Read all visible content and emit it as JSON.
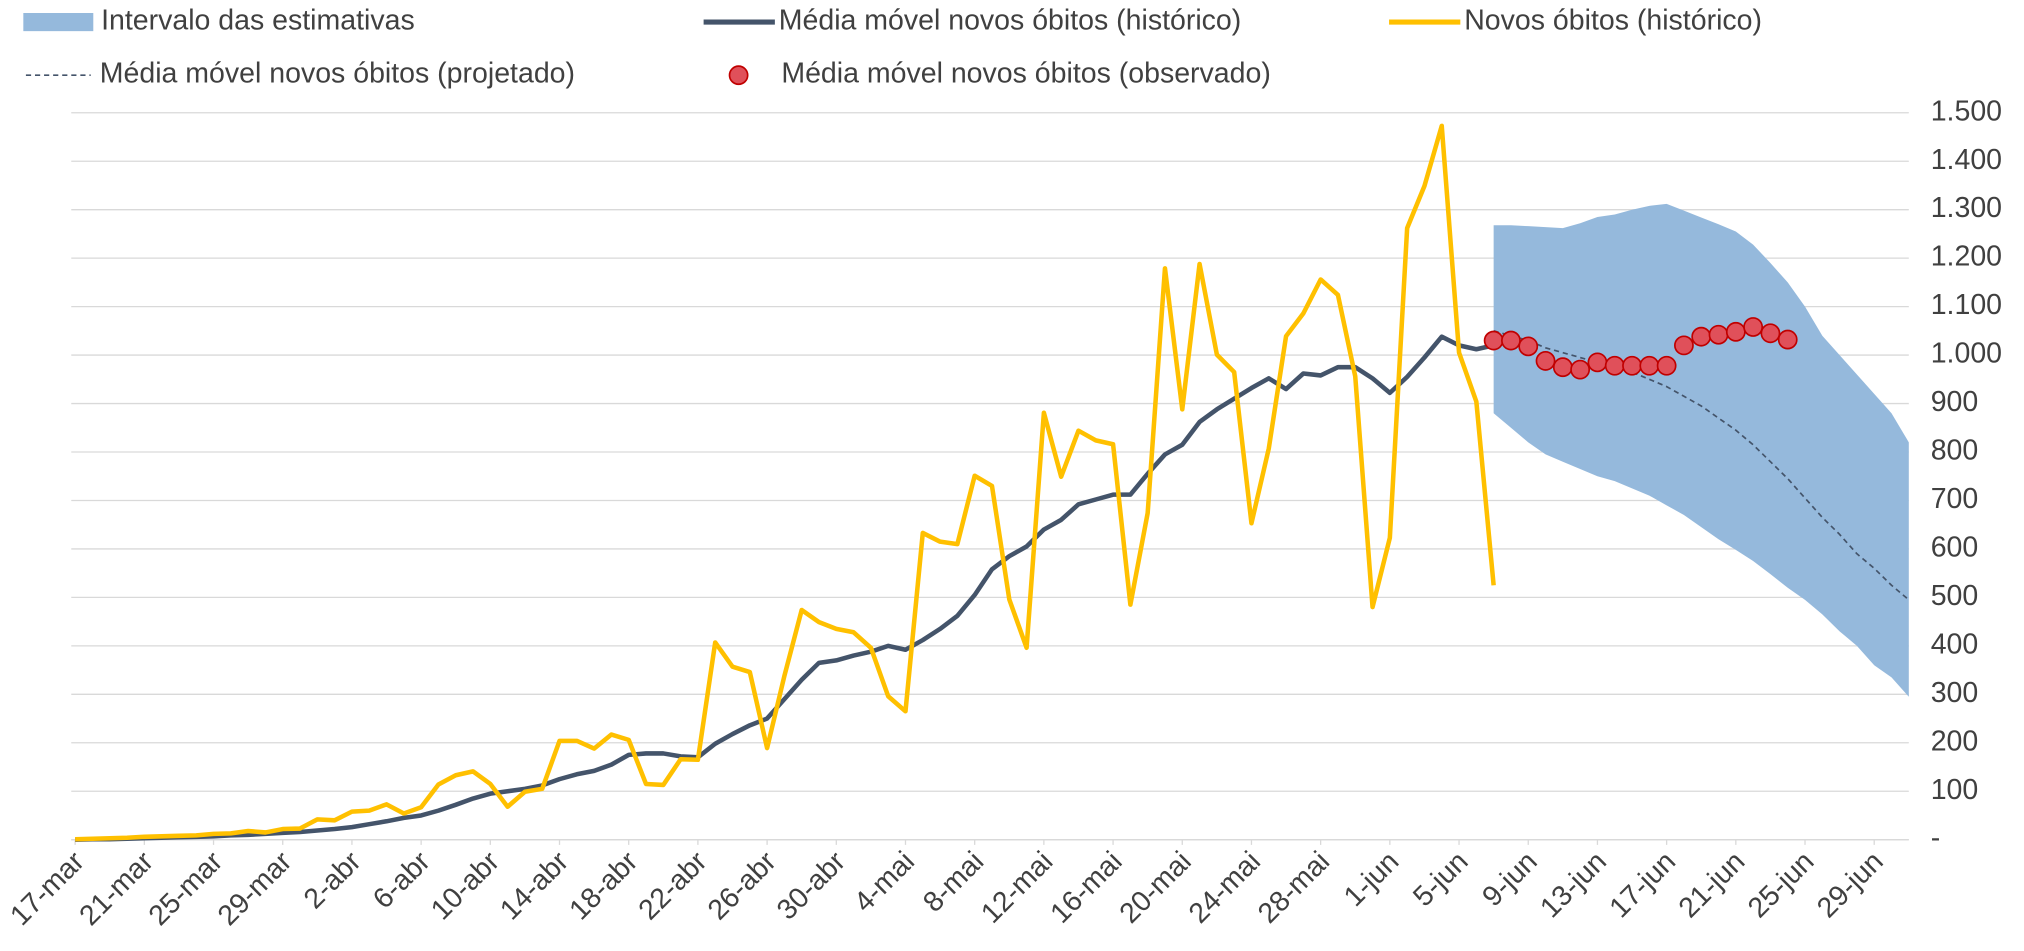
{
  "chart_data": {
    "type": "line",
    "categories": [
      "17-mar",
      null,
      null,
      null,
      "21-mar",
      null,
      null,
      null,
      "25-mar",
      null,
      null,
      null,
      "29-mar",
      null,
      null,
      null,
      "2-abr",
      null,
      null,
      null,
      "6-abr",
      null,
      null,
      null,
      "10-abr",
      null,
      null,
      null,
      "14-abr",
      null,
      null,
      null,
      "18-abr",
      null,
      null,
      null,
      "22-abr",
      null,
      null,
      null,
      "26-abr",
      null,
      null,
      null,
      "30-abr",
      null,
      null,
      null,
      "4-mai",
      null,
      null,
      null,
      "8-mai",
      null,
      null,
      null,
      "12-mai",
      null,
      null,
      null,
      "16-mai",
      null,
      null,
      null,
      "20-mai",
      null,
      null,
      null,
      "24-mai",
      null,
      null,
      null,
      "28-mai",
      null,
      null,
      null,
      "1-jun",
      null,
      null,
      null,
      "5-jun",
      null,
      null,
      null,
      "9-jun",
      null,
      null,
      null,
      "13-jun",
      null,
      null,
      null,
      "17-jun",
      null,
      null,
      null,
      "21-jun",
      null,
      null,
      null,
      "25-jun",
      null,
      null,
      null,
      "29-jun",
      null,
      null
    ],
    "series": [
      {
        "name": "Intervalo das estimativas",
        "type": "band",
        "color": "#95b9dc",
        "upper": [
          null,
          null,
          null,
          null,
          null,
          null,
          null,
          null,
          null,
          null,
          null,
          null,
          null,
          null,
          null,
          null,
          null,
          null,
          null,
          null,
          null,
          null,
          null,
          null,
          null,
          null,
          null,
          null,
          null,
          null,
          null,
          null,
          null,
          null,
          null,
          null,
          null,
          null,
          null,
          null,
          null,
          null,
          null,
          null,
          null,
          null,
          null,
          null,
          null,
          null,
          null,
          null,
          null,
          null,
          null,
          null,
          null,
          null,
          null,
          null,
          null,
          null,
          null,
          null,
          null,
          null,
          null,
          null,
          null,
          null,
          null,
          null,
          null,
          null,
          null,
          null,
          null,
          null,
          null,
          null,
          null,
          null,
          1268,
          1268,
          1266,
          1264,
          1262,
          1272,
          1285,
          1290,
          1300,
          1308,
          1312,
          1298,
          1284,
          1270,
          1255,
          1228,
          1190,
          1150,
          1100,
          1040,
          1000,
          960,
          920,
          880,
          820
        ],
        "lower": [
          null,
          null,
          null,
          null,
          null,
          null,
          null,
          null,
          null,
          null,
          null,
          null,
          null,
          null,
          null,
          null,
          null,
          null,
          null,
          null,
          null,
          null,
          null,
          null,
          null,
          null,
          null,
          null,
          null,
          null,
          null,
          null,
          null,
          null,
          null,
          null,
          null,
          null,
          null,
          null,
          null,
          null,
          null,
          null,
          null,
          null,
          null,
          null,
          null,
          null,
          null,
          null,
          null,
          null,
          null,
          null,
          null,
          null,
          null,
          null,
          null,
          null,
          null,
          null,
          null,
          null,
          null,
          null,
          null,
          null,
          null,
          null,
          null,
          null,
          null,
          null,
          null,
          null,
          null,
          null,
          null,
          null,
          880,
          850,
          820,
          795,
          780,
          765,
          750,
          740,
          725,
          710,
          690,
          670,
          645,
          620,
          598,
          575,
          548,
          520,
          495,
          465,
          430,
          400,
          360,
          335,
          295
        ]
      },
      {
        "name": "Média móvel novos óbitos (histórico)",
        "type": "line",
        "color": "#44546a",
        "values": [
          0,
          1,
          1,
          2,
          3,
          4,
          5,
          6,
          7,
          9,
          10,
          12,
          14,
          16,
          19,
          22,
          26,
          32,
          38,
          45,
          50,
          60,
          72,
          85,
          95,
          100,
          105,
          112,
          125,
          135,
          142,
          155,
          175,
          178,
          178,
          172,
          170,
          198,
          218,
          236,
          250,
          290,
          330,
          365,
          370,
          380,
          388,
          400,
          392,
          412,
          435,
          462,
          505,
          558,
          585,
          605,
          640,
          660,
          692,
          702,
          712,
          712,
          755,
          795,
          815,
          862,
          888,
          910,
          932,
          952,
          930,
          962,
          958,
          975,
          975,
          952,
          922,
          955,
          995,
          1038,
          1020,
          1012,
          1020,
          null,
          null,
          null,
          null,
          null,
          null,
          null,
          null,
          null,
          null,
          null,
          null,
          null,
          null,
          null,
          null,
          null,
          null,
          null,
          null,
          null,
          null,
          null,
          null
        ]
      },
      {
        "name": "Novos óbitos (histórico)",
        "type": "line",
        "color": "#ffc000",
        "values": [
          1,
          2,
          3,
          4,
          6,
          7,
          8,
          9,
          12,
          13,
          18,
          15,
          22,
          23,
          42,
          40,
          58,
          60,
          73,
          54,
          67,
          114,
          133,
          141,
          115,
          68,
          99,
          105,
          204,
          204,
          188,
          217,
          206,
          115,
          113,
          166,
          165,
          407,
          357,
          346,
          189,
          338,
          474,
          449,
          435,
          428,
          396,
          296,
          265,
          633,
          615,
          610,
          751,
          730,
          496,
          396,
          881,
          749,
          844,
          824,
          816,
          485,
          674,
          1179,
          888,
          1188,
          1001,
          965,
          653,
          807,
          1039,
          1086,
          1156,
          1124,
          956,
          480,
          623,
          1262,
          1349,
          1473,
          1005,
          904,
          525,
          null,
          null,
          null,
          null,
          null,
          null,
          null,
          null,
          null,
          null,
          null,
          null,
          null,
          null,
          null,
          null,
          null,
          null,
          null,
          null,
          null,
          null,
          null,
          null
        ]
      },
      {
        "name": "Média móvel novos óbitos (projetado)",
        "type": "dashed",
        "color": "#44546a",
        "values": [
          null,
          null,
          null,
          null,
          null,
          null,
          null,
          null,
          null,
          null,
          null,
          null,
          null,
          null,
          null,
          null,
          null,
          null,
          null,
          null,
          null,
          null,
          null,
          null,
          null,
          null,
          null,
          null,
          null,
          null,
          null,
          null,
          null,
          null,
          null,
          null,
          null,
          null,
          null,
          null,
          null,
          null,
          null,
          null,
          null,
          null,
          null,
          null,
          null,
          null,
          null,
          null,
          null,
          null,
          null,
          null,
          null,
          null,
          null,
          null,
          null,
          null,
          null,
          null,
          null,
          null,
          null,
          null,
          null,
          null,
          null,
          null,
          null,
          null,
          null,
          null,
          null,
          null,
          null,
          null,
          null,
          null,
          1050,
          1040,
          1030,
          1015,
          1005,
          995,
          985,
          975,
          965,
          950,
          935,
          915,
          895,
          870,
          845,
          815,
          780,
          745,
          705,
          665,
          630,
          590,
          560,
          525,
          495
        ]
      },
      {
        "name": "Média móvel novos óbitos (observado)",
        "type": "scatter",
        "color": "#e0505a",
        "values": [
          null,
          null,
          null,
          null,
          null,
          null,
          null,
          null,
          null,
          null,
          null,
          null,
          null,
          null,
          null,
          null,
          null,
          null,
          null,
          null,
          null,
          null,
          null,
          null,
          null,
          null,
          null,
          null,
          null,
          null,
          null,
          null,
          null,
          null,
          null,
          null,
          null,
          null,
          null,
          null,
          null,
          null,
          null,
          null,
          null,
          null,
          null,
          null,
          null,
          null,
          null,
          null,
          null,
          null,
          null,
          null,
          null,
          null,
          null,
          null,
          null,
          null,
          null,
          null,
          null,
          null,
          null,
          null,
          null,
          null,
          null,
          null,
          null,
          null,
          null,
          null,
          null,
          null,
          null,
          null,
          null,
          null,
          1030,
          1030,
          1018,
          988,
          975,
          970,
          985,
          978,
          978,
          978,
          978,
          1020,
          1038,
          1042,
          1048,
          1058,
          1045,
          1032,
          null,
          null,
          null,
          null,
          null,
          null,
          null
        ]
      }
    ],
    "ylim": [
      0,
      1500
    ],
    "yticks": [
      {
        "value": 0,
        "label": "-"
      },
      100,
      200,
      300,
      400,
      500,
      600,
      700,
      800,
      900,
      {
        "value": 1000,
        "label": "1.000"
      },
      {
        "value": 1100,
        "label": "1.100"
      },
      {
        "value": 1200,
        "label": "1.200"
      },
      {
        "value": 1300,
        "label": "1.300"
      },
      {
        "value": 1400,
        "label": "1.400"
      },
      {
        "value": 1500,
        "label": "1.500"
      }
    ],
    "grid": true
  }
}
